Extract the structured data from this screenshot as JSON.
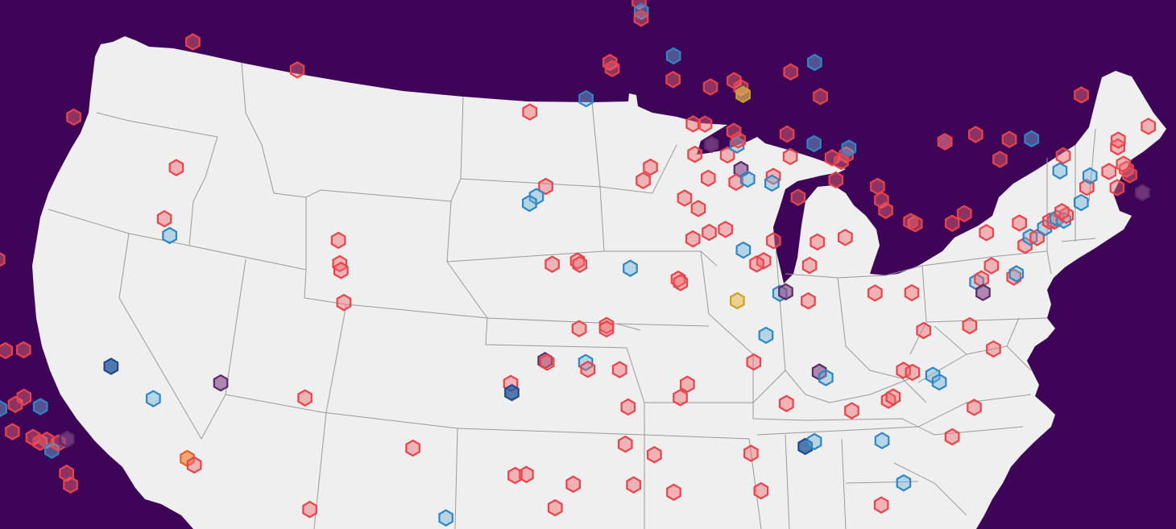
{
  "map": {
    "background_color": "#3d0458",
    "land_color": "#efefef",
    "border_color": "#9a9a9a",
    "marker_shape": "hexagon",
    "marker_styles": {
      "red": {
        "fill": "#f26b6f",
        "stroke": "#e8434b",
        "fill_opacity": 0.45
      },
      "blue": {
        "fill": "#6fb3dc",
        "stroke": "#2f86c4",
        "fill_opacity": 0.45
      },
      "purple": {
        "fill": "#8a4f8e",
        "stroke": "#5b2a6a",
        "fill_opacity": 0.65
      },
      "yellow": {
        "fill": "#e8c25a",
        "stroke": "#c9a227",
        "fill_opacity": 0.65
      },
      "orange": {
        "fill": "#f08a3c",
        "stroke": "#e0602a",
        "fill_opacity": 0.7
      },
      "navy": {
        "fill": "#2a5aa0",
        "stroke": "#1e4a8c",
        "fill_opacity": 0.8
      }
    },
    "markers": [
      {
        "lon": -122.8,
        "lat": 48.9,
        "cat": "red"
      },
      {
        "lon": -122.4,
        "lat": 47.7,
        "cat": "red"
      },
      {
        "lon": -122.3,
        "lat": 47.6,
        "cat": "orange"
      },
      {
        "lon": -122.6,
        "lat": 47.4,
        "cat": "red"
      },
      {
        "lon": -122.9,
        "lat": 47.2,
        "cat": "red"
      },
      {
        "lon": -122.7,
        "lat": 45.5,
        "cat": "yellow"
      },
      {
        "lon": -117.4,
        "lat": 47.6,
        "cat": "blue"
      },
      {
        "lon": -123.0,
        "lat": 44.9,
        "cat": "red"
      },
      {
        "lon": -123.1,
        "lat": 44.0,
        "cat": "red"
      },
      {
        "lon": -122.6,
        "lat": 42.3,
        "cat": "blue"
      },
      {
        "lon": -116.2,
        "lat": 43.6,
        "cat": "red"
      },
      {
        "lon": -111.0,
        "lat": 45.7,
        "cat": "red"
      },
      {
        "lon": -106.6,
        "lat": 44.8,
        "cat": "red"
      },
      {
        "lon": -111.9,
        "lat": 42.0,
        "cat": "red"
      },
      {
        "lon": -121.7,
        "lat": 40.0,
        "cat": "red"
      },
      {
        "lon": -119.8,
        "lat": 39.5,
        "cat": "red"
      },
      {
        "lon": -120.2,
        "lat": 38.8,
        "cat": "blue"
      },
      {
        "lon": -121.9,
        "lat": 38.5,
        "cat": "purple"
      },
      {
        "lon": -122.3,
        "lat": 37.8,
        "cat": "orange"
      },
      {
        "lon": -122.1,
        "lat": 37.9,
        "cat": "red"
      },
      {
        "lon": -122.0,
        "lat": 37.4,
        "cat": "red"
      },
      {
        "lon": -121.2,
        "lat": 37.5,
        "cat": "red"
      },
      {
        "lon": -122.1,
        "lat": 36.9,
        "cat": "blue"
      },
      {
        "lon": -121.3,
        "lat": 36.4,
        "cat": "red"
      },
      {
        "lon": -119.7,
        "lat": 36.8,
        "cat": "red"
      },
      {
        "lon": -118.9,
        "lat": 36.8,
        "cat": "red"
      },
      {
        "lon": -120.7,
        "lat": 35.3,
        "cat": "blue"
      },
      {
        "lon": -120.1,
        "lat": 35.1,
        "cat": "blue"
      },
      {
        "lon": -119.4,
        "lat": 35.2,
        "cat": "red"
      },
      {
        "lon": -119.0,
        "lat": 35.4,
        "cat": "red"
      },
      {
        "lon": -118.3,
        "lat": 35.1,
        "cat": "blue"
      },
      {
        "lon": -119.6,
        "lat": 34.4,
        "cat": "red"
      },
      {
        "lon": -118.7,
        "lat": 34.2,
        "cat": "red"
      },
      {
        "lon": -118.4,
        "lat": 34.05,
        "cat": "red"
      },
      {
        "lon": -118.1,
        "lat": 34.1,
        "cat": "red"
      },
      {
        "lon": -117.9,
        "lat": 33.8,
        "cat": "blue"
      },
      {
        "lon": -117.6,
        "lat": 34.0,
        "cat": "red"
      },
      {
        "lon": -117.2,
        "lat": 34.1,
        "cat": "purple"
      },
      {
        "lon": -117.3,
        "lat": 33.1,
        "cat": "red"
      },
      {
        "lon": -117.15,
        "lat": 32.75,
        "cat": "red"
      },
      {
        "lon": -115.1,
        "lat": 36.2,
        "cat": "navy"
      },
      {
        "lon": -112.5,
        "lat": 40.5,
        "cat": "red"
      },
      {
        "lon": -112.3,
        "lat": 40.0,
        "cat": "blue"
      },
      {
        "lon": -111.9,
        "lat": 33.4,
        "cat": "orange"
      },
      {
        "lon": -111.6,
        "lat": 33.2,
        "cat": "red"
      },
      {
        "lon": -113.3,
        "lat": 35.2,
        "cat": "blue"
      },
      {
        "lon": -110.3,
        "lat": 35.6,
        "cat": "purple"
      },
      {
        "lon": -106.6,
        "lat": 35.1,
        "cat": "red"
      },
      {
        "lon": -104.99,
        "lat": 39.74,
        "cat": "red"
      },
      {
        "lon": -104.95,
        "lat": 39.05,
        "cat": "red"
      },
      {
        "lon": -104.9,
        "lat": 38.85,
        "cat": "red"
      },
      {
        "lon": -104.8,
        "lat": 37.9,
        "cat": "red"
      },
      {
        "lon": -96.7,
        "lat": 43.5,
        "cat": "red"
      },
      {
        "lon": -96.0,
        "lat": 41.3,
        "cat": "red"
      },
      {
        "lon": -96.4,
        "lat": 41.0,
        "cat": "blue"
      },
      {
        "lon": -96.7,
        "lat": 40.8,
        "cat": "blue"
      },
      {
        "lon": -94.6,
        "lat": 39.1,
        "cat": "red"
      },
      {
        "lon": -94.5,
        "lat": 39.0,
        "cat": "red"
      },
      {
        "lon": -95.7,
        "lat": 39.0,
        "cat": "red"
      },
      {
        "lon": -92.1,
        "lat": 46.8,
        "cat": "red"
      },
      {
        "lon": -92.0,
        "lat": 46.5,
        "cat": "blue"
      },
      {
        "lon": -92.0,
        "lat": 46.3,
        "cat": "red"
      },
      {
        "lon": -90.6,
        "lat": 45.2,
        "cat": "blue"
      },
      {
        "lon": -93.3,
        "lat": 44.98,
        "cat": "red"
      },
      {
        "lon": -93.2,
        "lat": 44.8,
        "cat": "red"
      },
      {
        "lon": -90.6,
        "lat": 44.5,
        "cat": "red"
      },
      {
        "lon": -89.0,
        "lat": 44.3,
        "cat": "red"
      },
      {
        "lon": -94.3,
        "lat": 43.9,
        "cat": "blue"
      },
      {
        "lon": -88.0,
        "lat": 44.5,
        "cat": "red"
      },
      {
        "lon": -87.7,
        "lat": 44.3,
        "cat": "red"
      },
      {
        "lon": -87.6,
        "lat": 44.1,
        "cat": "yellow"
      },
      {
        "lon": -89.7,
        "lat": 43.2,
        "cat": "red"
      },
      {
        "lon": -89.2,
        "lat": 43.2,
        "cat": "red"
      },
      {
        "lon": -87.95,
        "lat": 43.0,
        "cat": "red"
      },
      {
        "lon": -88.9,
        "lat": 42.6,
        "cat": "purple"
      },
      {
        "lon": -88.2,
        "lat": 42.3,
        "cat": "red"
      },
      {
        "lon": -87.8,
        "lat": 42.6,
        "cat": "blue"
      },
      {
        "lon": -87.75,
        "lat": 42.75,
        "cat": "red"
      },
      {
        "lon": -87.6,
        "lat": 41.88,
        "cat": "purple"
      },
      {
        "lon": -87.8,
        "lat": 41.5,
        "cat": "red"
      },
      {
        "lon": -87.3,
        "lat": 41.6,
        "cat": "blue"
      },
      {
        "lon": -89.6,
        "lat": 42.3,
        "cat": "red"
      },
      {
        "lon": -91.5,
        "lat": 41.9,
        "cat": "red"
      },
      {
        "lon": -91.8,
        "lat": 41.5,
        "cat": "red"
      },
      {
        "lon": -89.0,
        "lat": 41.6,
        "cat": "red"
      },
      {
        "lon": -90.0,
        "lat": 41.0,
        "cat": "red"
      },
      {
        "lon": -89.4,
        "lat": 40.7,
        "cat": "red"
      },
      {
        "lon": -88.2,
        "lat": 40.1,
        "cat": "red"
      },
      {
        "lon": -88.9,
        "lat": 40.0,
        "cat": "red"
      },
      {
        "lon": -89.6,
        "lat": 39.8,
        "cat": "red"
      },
      {
        "lon": -87.4,
        "lat": 39.5,
        "cat": "blue"
      },
      {
        "lon": -90.2,
        "lat": 38.6,
        "cat": "red"
      },
      {
        "lon": -90.1,
        "lat": 38.5,
        "cat": "red"
      },
      {
        "lon": -92.3,
        "lat": 38.9,
        "cat": "blue"
      },
      {
        "lon": -93.3,
        "lat": 37.2,
        "cat": "red"
      },
      {
        "lon": -93.3,
        "lat": 37.1,
        "cat": "red"
      },
      {
        "lon": -94.5,
        "lat": 37.1,
        "cat": "red"
      },
      {
        "lon": -94.2,
        "lat": 36.1,
        "cat": "blue"
      },
      {
        "lon": -94.1,
        "lat": 35.9,
        "cat": "red"
      },
      {
        "lon": -92.3,
        "lat": 34.8,
        "cat": "red"
      },
      {
        "lon": -92.7,
        "lat": 35.9,
        "cat": "red"
      },
      {
        "lon": -90.0,
        "lat": 35.1,
        "cat": "red"
      },
      {
        "lon": -89.7,
        "lat": 35.5,
        "cat": "red"
      },
      {
        "lon": -85.5,
        "lat": 42.3,
        "cat": "red"
      },
      {
        "lon": -85.6,
        "lat": 44.8,
        "cat": "red"
      },
      {
        "lon": -84.6,
        "lat": 45.1,
        "cat": "blue"
      },
      {
        "lon": -84.3,
        "lat": 44.1,
        "cat": "red"
      },
      {
        "lon": -85.67,
        "lat": 42.96,
        "cat": "red"
      },
      {
        "lon": -84.5,
        "lat": 42.7,
        "cat": "blue"
      },
      {
        "lon": -83.7,
        "lat": 42.3,
        "cat": "red"
      },
      {
        "lon": -83.1,
        "lat": 42.4,
        "cat": "red"
      },
      {
        "lon": -83.0,
        "lat": 42.6,
        "cat": "blue"
      },
      {
        "lon": -83.3,
        "lat": 42.2,
        "cat": "red"
      },
      {
        "lon": -85.1,
        "lat": 41.1,
        "cat": "red"
      },
      {
        "lon": -86.2,
        "lat": 41.7,
        "cat": "red"
      },
      {
        "lon": -86.25,
        "lat": 41.5,
        "cat": "blue"
      },
      {
        "lon": -86.1,
        "lat": 39.8,
        "cat": "red"
      },
      {
        "lon": -86.5,
        "lat": 39.2,
        "cat": "red"
      },
      {
        "lon": -87.6,
        "lat": 38.0,
        "cat": "yellow"
      },
      {
        "lon": -85.75,
        "lat": 38.25,
        "cat": "blue"
      },
      {
        "lon": -85.5,
        "lat": 38.3,
        "cat": "purple"
      },
      {
        "lon": -84.5,
        "lat": 38.05,
        "cat": "red"
      },
      {
        "lon": -84.5,
        "lat": 39.1,
        "cat": "red"
      },
      {
        "lon": -84.2,
        "lat": 39.8,
        "cat": "red"
      },
      {
        "lon": -83.0,
        "lat": 39.96,
        "cat": "red"
      },
      {
        "lon": -81.7,
        "lat": 41.5,
        "cat": "red"
      },
      {
        "lon": -81.5,
        "lat": 41.1,
        "cat": "red"
      },
      {
        "lon": -81.3,
        "lat": 40.8,
        "cat": "red"
      },
      {
        "lon": -83.5,
        "lat": 41.65,
        "cat": "red"
      },
      {
        "lon": -86.8,
        "lat": 39.1,
        "cat": "red"
      },
      {
        "lon": -86.3,
        "lat": 37.0,
        "cat": "blue"
      },
      {
        "lon": -86.8,
        "lat": 36.2,
        "cat": "red"
      },
      {
        "lon": -85.3,
        "lat": 35.0,
        "cat": "red"
      },
      {
        "lon": -83.9,
        "lat": 35.96,
        "cat": "purple"
      },
      {
        "lon": -83.6,
        "lat": 35.8,
        "cat": "blue"
      },
      {
        "lon": -86.8,
        "lat": 33.5,
        "cat": "red"
      },
      {
        "lon": -84.4,
        "lat": 33.75,
        "cat": "navy"
      },
      {
        "lon": -84.0,
        "lat": 33.9,
        "cat": "blue"
      },
      {
        "lon": -82.4,
        "lat": 34.85,
        "cat": "red"
      },
      {
        "lon": -81.0,
        "lat": 34.0,
        "cat": "blue"
      },
      {
        "lon": -80.8,
        "lat": 35.2,
        "cat": "red"
      },
      {
        "lon": -80.6,
        "lat": 35.3,
        "cat": "red"
      },
      {
        "lon": -80.2,
        "lat": 36.1,
        "cat": "red"
      },
      {
        "lon": -79.8,
        "lat": 36.05,
        "cat": "red"
      },
      {
        "lon": -78.9,
        "lat": 35.99,
        "cat": "blue"
      },
      {
        "lon": -78.6,
        "lat": 35.8,
        "cat": "blue"
      },
      {
        "lon": -79.95,
        "lat": 32.78,
        "cat": "blue"
      },
      {
        "lon": -80.9,
        "lat": 32.1,
        "cat": "red"
      },
      {
        "lon": -77.9,
        "lat": 34.2,
        "cat": "red"
      },
      {
        "lon": -77.0,
        "lat": 35.1,
        "cat": "red"
      },
      {
        "lon": -80.0,
        "lat": 38.4,
        "cat": "red"
      },
      {
        "lon": -81.6,
        "lat": 38.35,
        "cat": "red"
      },
      {
        "lon": -79.4,
        "lat": 37.3,
        "cat": "red"
      },
      {
        "lon": -77.4,
        "lat": 37.5,
        "cat": "red"
      },
      {
        "lon": -76.3,
        "lat": 36.85,
        "cat": "red"
      },
      {
        "lon": -77.2,
        "lat": 38.8,
        "cat": "blue"
      },
      {
        "lon": -77.0,
        "lat": 38.9,
        "cat": "red"
      },
      {
        "lon": -76.6,
        "lat": 39.3,
        "cat": "red"
      },
      {
        "lon": -76.9,
        "lat": 38.5,
        "cat": "purple"
      },
      {
        "lon": -75.6,
        "lat": 39.0,
        "cat": "red"
      },
      {
        "lon": -75.5,
        "lat": 39.1,
        "cat": "blue"
      },
      {
        "lon": -80.0,
        "lat": 40.44,
        "cat": "red"
      },
      {
        "lon": -80.2,
        "lat": 40.5,
        "cat": "red"
      },
      {
        "lon": -77.9,
        "lat": 40.8,
        "cat": "red"
      },
      {
        "lon": -76.9,
        "lat": 40.27,
        "cat": "red"
      },
      {
        "lon": -78.4,
        "lat": 40.5,
        "cat": "red"
      },
      {
        "lon": -75.2,
        "lat": 39.95,
        "cat": "red"
      },
      {
        "lon": -75.5,
        "lat": 40.6,
        "cat": "red"
      },
      {
        "lon": -75.0,
        "lat": 40.2,
        "cat": "blue"
      },
      {
        "lon": -74.7,
        "lat": 40.2,
        "cat": "red"
      },
      {
        "lon": -74.4,
        "lat": 40.5,
        "cat": "blue"
      },
      {
        "lon": -74.2,
        "lat": 40.7,
        "cat": "red"
      },
      {
        "lon": -74.0,
        "lat": 40.71,
        "cat": "red"
      },
      {
        "lon": -73.9,
        "lat": 40.8,
        "cat": "blue"
      },
      {
        "lon": -73.6,
        "lat": 40.75,
        "cat": "blue"
      },
      {
        "lon": -73.5,
        "lat": 40.9,
        "cat": "red"
      },
      {
        "lon": -73.7,
        "lat": 41.0,
        "cat": "red"
      },
      {
        "lon": -72.9,
        "lat": 41.3,
        "cat": "blue"
      },
      {
        "lon": -72.7,
        "lat": 41.76,
        "cat": "red"
      },
      {
        "lon": -73.8,
        "lat": 42.65,
        "cat": "red"
      },
      {
        "lon": -73.9,
        "lat": 42.2,
        "cat": "blue"
      },
      {
        "lon": -72.6,
        "lat": 42.1,
        "cat": "blue"
      },
      {
        "lon": -71.8,
        "lat": 42.26,
        "cat": "red"
      },
      {
        "lon": -71.4,
        "lat": 41.8,
        "cat": "red"
      },
      {
        "lon": -71.06,
        "lat": 42.36,
        "cat": "red"
      },
      {
        "lon": -71.2,
        "lat": 42.5,
        "cat": "red"
      },
      {
        "lon": -70.9,
        "lat": 42.2,
        "cat": "red"
      },
      {
        "lon": -70.3,
        "lat": 41.7,
        "cat": "purple"
      },
      {
        "lon": -71.5,
        "lat": 43.0,
        "cat": "red"
      },
      {
        "lon": -71.5,
        "lat": 43.2,
        "cat": "red"
      },
      {
        "lon": -70.26,
        "lat": 43.66,
        "cat": "red"
      },
      {
        "lon": -73.2,
        "lat": 44.47,
        "cat": "red"
      },
      {
        "lon": -76.15,
        "lat": 43.05,
        "cat": "red"
      },
      {
        "lon": -77.6,
        "lat": 43.15,
        "cat": "red"
      },
      {
        "lon": -75.2,
        "lat": 43.1,
        "cat": "blue"
      },
      {
        "lon": -76.5,
        "lat": 42.45,
        "cat": "red"
      },
      {
        "lon": -78.88,
        "lat": 42.89,
        "cat": "purple"
      },
      {
        "lon": -78.9,
        "lat": 42.9,
        "cat": "red"
      },
      {
        "lon": -97.5,
        "lat": 35.47,
        "cat": "red"
      },
      {
        "lon": -97.45,
        "lat": 35.2,
        "cat": "navy"
      },
      {
        "lon": -95.99,
        "lat": 36.15,
        "cat": "purple"
      },
      {
        "lon": -95.9,
        "lat": 36.1,
        "cat": "red"
      },
      {
        "lon": -96.8,
        "lat": 32.78,
        "cat": "red"
      },
      {
        "lon": -97.3,
        "lat": 32.75,
        "cat": "red"
      },
      {
        "lon": -95.4,
        "lat": 29.76,
        "cat": "red"
      },
      {
        "lon": -97.74,
        "lat": 30.27,
        "cat": "red"
      },
      {
        "lon": -101.85,
        "lat": 33.57,
        "cat": "red"
      },
      {
        "lon": -95.5,
        "lat": 31.8,
        "cat": "red"
      },
      {
        "lon": -94.7,
        "lat": 32.5,
        "cat": "red"
      },
      {
        "lon": -106.5,
        "lat": 31.8,
        "cat": "red"
      },
      {
        "lon": -100.4,
        "lat": 31.5,
        "cat": "blue"
      },
      {
        "lon": -91.1,
        "lat": 33.4,
        "cat": "red"
      },
      {
        "lon": -92.4,
        "lat": 33.7,
        "cat": "red"
      },
      {
        "lon": -92.0,
        "lat": 32.5,
        "cat": "red"
      },
      {
        "lon": -90.2,
        "lat": 32.3,
        "cat": "red"
      },
      {
        "lon": -86.3,
        "lat": 32.4,
        "cat": "red"
      }
    ]
  }
}
